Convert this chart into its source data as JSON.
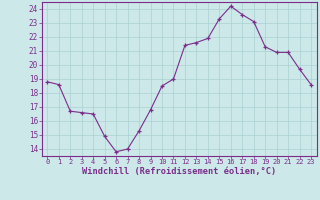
{
  "x": [
    0,
    1,
    2,
    3,
    4,
    5,
    6,
    7,
    8,
    9,
    10,
    11,
    12,
    13,
    14,
    15,
    16,
    17,
    18,
    19,
    20,
    21,
    22,
    23
  ],
  "y": [
    18.8,
    18.6,
    16.7,
    16.6,
    16.5,
    14.9,
    13.8,
    14.0,
    15.3,
    16.8,
    18.5,
    19.0,
    21.4,
    21.6,
    21.9,
    23.3,
    24.2,
    23.6,
    23.1,
    21.3,
    20.9,
    20.9,
    19.7,
    18.6
  ],
  "line_color": "#7b2d8b",
  "marker": "+",
  "bg_color": "#cce8e8",
  "grid_color": "#aad0d0",
  "xlabel": "Windchill (Refroidissement éolien,°C)",
  "ylabel_ticks": [
    14,
    15,
    16,
    17,
    18,
    19,
    20,
    21,
    22,
    23,
    24
  ],
  "xlim": [
    -0.5,
    23.5
  ],
  "ylim": [
    13.5,
    24.5
  ],
  "xticks": [
    0,
    1,
    2,
    3,
    4,
    5,
    6,
    7,
    8,
    9,
    10,
    11,
    12,
    13,
    14,
    15,
    16,
    17,
    18,
    19,
    20,
    21,
    22,
    23
  ],
  "xlabel_color": "#7b2d8b",
  "tick_color": "#7b2d8b",
  "spine_color": "#7b2d8b"
}
